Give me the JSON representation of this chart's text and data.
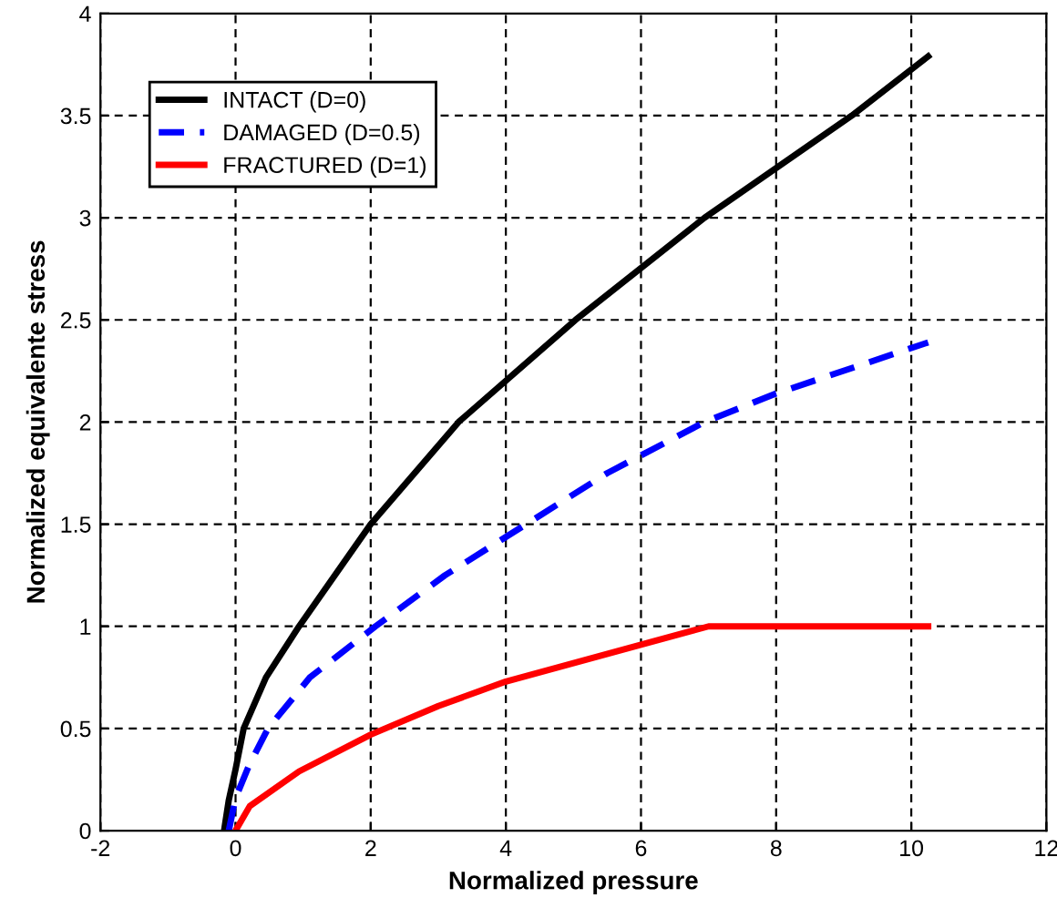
{
  "chart_data": {
    "type": "line",
    "xlabel": "Normalized pressure",
    "ylabel": "Normalized equivalente stress",
    "xlim": [
      -2,
      12
    ],
    "ylim": [
      0,
      4
    ],
    "xticks": [
      -2,
      0,
      2,
      4,
      6,
      8,
      10,
      12
    ],
    "yticks": [
      0,
      0.5,
      1,
      1.5,
      2,
      2.5,
      3,
      3.5,
      4
    ],
    "grid": true,
    "legend": "top left",
    "series": [
      {
        "name": "INTACT (D=0)",
        "color": "#000000",
        "line_style": "solid",
        "x": [
          -0.17,
          -0.1,
          0.0,
          0.12,
          0.45,
          0.94,
          2.0,
          3.3,
          5.03,
          6.94,
          9.12,
          10.25
        ],
        "values": [
          0,
          0.15,
          0.3,
          0.5,
          0.75,
          1.0,
          1.5,
          2.0,
          2.5,
          3.0,
          3.5,
          3.79
        ]
      },
      {
        "name": "DAMAGED (D=0.5)",
        "color": "#0000ff",
        "line_style": "dashed",
        "x": [
          -0.1,
          0.0,
          0.2,
          0.48,
          1.1,
          2.07,
          3.1,
          4.3,
          5.5,
          6.94,
          8.0,
          10.25
        ],
        "values": [
          0,
          0.16,
          0.32,
          0.5,
          0.75,
          1.0,
          1.25,
          1.5,
          1.75,
          2.0,
          2.14,
          2.39
        ]
      },
      {
        "name": "FRACTURED (D=1)",
        "color": "#ff0000",
        "line_style": "solid",
        "x": [
          0.0,
          0.21,
          0.94,
          2.0,
          3.0,
          4.0,
          5.0,
          6.0,
          7.0,
          10.25
        ],
        "values": [
          0,
          0.12,
          0.29,
          0.47,
          0.61,
          0.73,
          0.82,
          0.91,
          1.0,
          1.0
        ]
      }
    ]
  }
}
